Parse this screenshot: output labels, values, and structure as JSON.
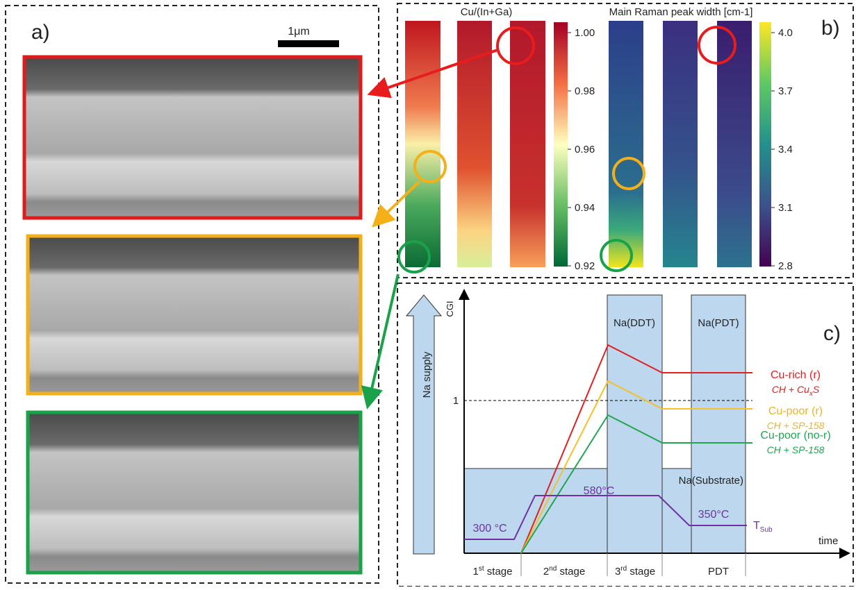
{
  "panel_a": {
    "label": "a)",
    "scale_bar": "1μm"
  },
  "panel_b": {
    "label": "b)",
    "left_title": "Cu/(In+Ga)",
    "right_title": "Main Raman peak width [cm-1]",
    "left_colorbar_ticks": [
      "1.00",
      "0.98",
      "0.96",
      "0.94",
      "0.92"
    ],
    "right_colorbar_ticks": [
      "4.0",
      "3.7",
      "3.4",
      "3.1",
      "2.8"
    ]
  },
  "panel_c": {
    "label": "c)",
    "y_axis": "CGI",
    "x_axis": "time",
    "one": "1",
    "na_supply": "Na supply",
    "na_ddt": "Na(DDT)",
    "na_pdt": "Na(PDT)",
    "na_substrate": "Na(Substrate)",
    "cu_rich": "Cu-rich (r)",
    "cu_rich_phase": {
      "text": "CH + Cu",
      "sub": "x",
      "tail": "S"
    },
    "cu_poor_r": "Cu-poor (r)",
    "cu_poor_r_phase": "CH + SP-158",
    "cu_poor_nor": "Cu-poor (no-r)",
    "cu_poor_nor_phase": "CH + SP-158",
    "t580": "580°C",
    "t300": "300 °C",
    "t350": "350°C",
    "tsub": {
      "text": "T",
      "sub": "Sub"
    },
    "stages": [
      {
        "num": "1",
        "sup": "st",
        "text": " stage"
      },
      {
        "num": "2",
        "sup": "nd",
        "text": " stage"
      },
      {
        "num": "3",
        "sup": "rd",
        "text": " stage"
      },
      {
        "num": "PDT"
      }
    ]
  }
}
